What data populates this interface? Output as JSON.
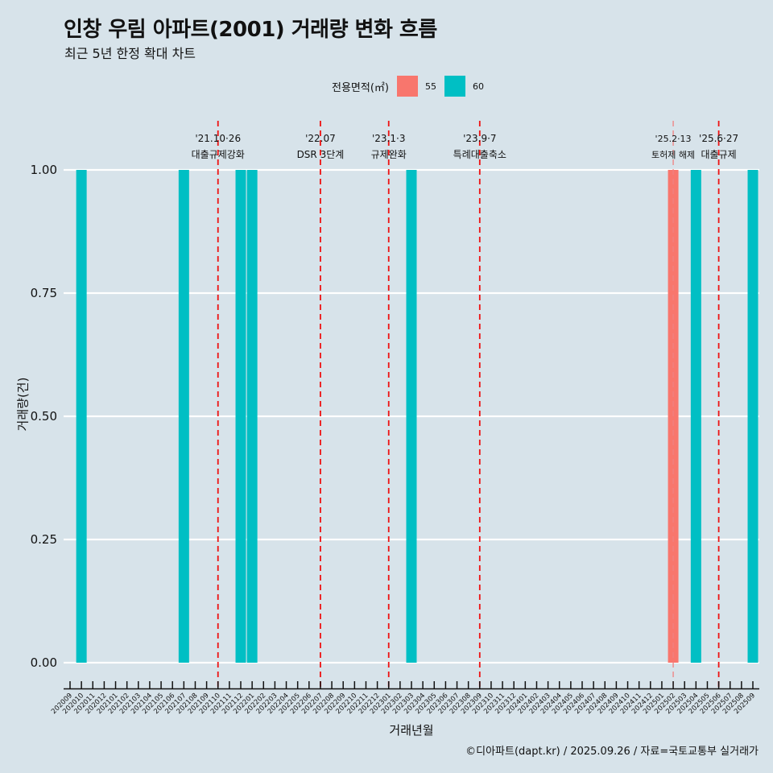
{
  "chart_data": {
    "type": "bar",
    "title": "인창 우림 아파트(2001) 거래량 변화 흐름",
    "subtitle": "최근 5년 한정 확대 차트",
    "xlabel": "거래년월",
    "ylabel": "거래량(건)",
    "ylim": [
      0,
      1
    ],
    "yticks": [
      "0.00",
      "0.25",
      "0.50",
      "0.75",
      "1.00"
    ],
    "ytick_values": [
      0,
      0.25,
      0.5,
      0.75,
      1.0
    ],
    "grid": true,
    "legend": {
      "title": "전용면적(㎡)",
      "placement": "top",
      "entries": [
        {
          "label": "55",
          "color": "#f8766d"
        },
        {
          "label": "60",
          "color": "#00bfc4"
        }
      ]
    },
    "categories": [
      "202009",
      "202010",
      "202011",
      "202012",
      "202101",
      "202102",
      "202103",
      "202104",
      "202105",
      "202106",
      "202107",
      "202108",
      "202109",
      "202110",
      "202111",
      "202112",
      "202201",
      "202202",
      "202203",
      "202204",
      "202205",
      "202206",
      "202207",
      "202208",
      "202209",
      "202210",
      "202211",
      "202212",
      "202301",
      "202302",
      "202303",
      "202304",
      "202305",
      "202306",
      "202307",
      "202308",
      "202309",
      "202310",
      "202311",
      "202312",
      "202401",
      "202402",
      "202403",
      "202404",
      "202405",
      "202406",
      "202407",
      "202408",
      "202409",
      "202410",
      "202411",
      "202412",
      "202501",
      "202502",
      "202503",
      "202504",
      "202505",
      "202506",
      "202507",
      "202508",
      "202509"
    ],
    "series": [
      {
        "name": "55",
        "color": "#f8766d",
        "points": [
          {
            "x": "202502",
            "y": 1
          }
        ]
      },
      {
        "name": "60",
        "color": "#00bfc4",
        "points": [
          {
            "x": "202010",
            "y": 1
          },
          {
            "x": "202107",
            "y": 1
          },
          {
            "x": "202112",
            "y": 1
          },
          {
            "x": "202201",
            "y": 1
          },
          {
            "x": "202303",
            "y": 1
          },
          {
            "x": "202504",
            "y": 1
          },
          {
            "x": "202509",
            "y": 1
          }
        ]
      }
    ],
    "annotations": [
      {
        "x": "202110",
        "line1": "'21.10·26",
        "line2": "대출규제강화",
        "color": "#ee1111",
        "style": "dashed"
      },
      {
        "x": "202207",
        "line1": "'22.07",
        "line2": "DSR 3단계",
        "color": "#ee1111",
        "style": "dashed"
      },
      {
        "x": "202301",
        "line1": "'23.1·3",
        "line2": "규제완화",
        "color": "#ee1111",
        "style": "dashed"
      },
      {
        "x": "202309",
        "line1": "'23.9·7",
        "line2": "특례대출축소",
        "color": "#ee1111",
        "style": "dashed"
      },
      {
        "x": "202502",
        "line1": "'25.2·13",
        "line2": "토허제 해제",
        "color": "#f08080",
        "style": "dashed-light"
      },
      {
        "x": "202506",
        "line1": "'25.6·27",
        "line2": "대출규제",
        "color": "#ee1111",
        "style": "dashed"
      }
    ],
    "caption": "©디아파트(dapt.kr) / 2025.09.26 / 자료=국토교통부 실거래가"
  }
}
